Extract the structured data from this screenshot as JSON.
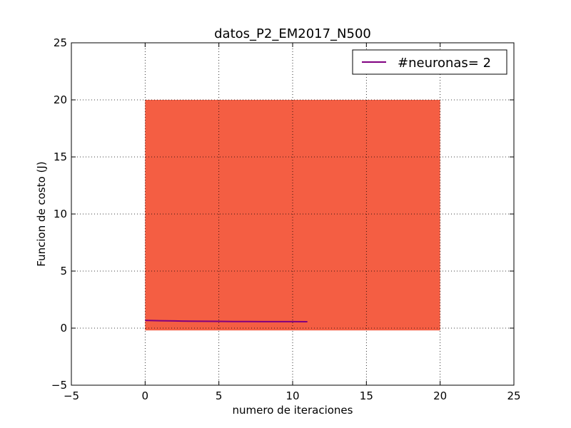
{
  "chart_data": {
    "type": "line",
    "title": "datos_P2_EM2017_N500",
    "xlabel": "numero de iteraciones",
    "ylabel": "Funcion de costo (J)",
    "xlim": [
      -5,
      25
    ],
    "ylim": [
      -5,
      25
    ],
    "xticks": [
      -5,
      0,
      5,
      10,
      15,
      20,
      25
    ],
    "yticks": [
      -5,
      0,
      5,
      10,
      15,
      20,
      25
    ],
    "xtick_labels": [
      "−5",
      "0",
      "5",
      "10",
      "15",
      "20",
      "25"
    ],
    "ytick_labels": [
      "−5",
      "0",
      "5",
      "10",
      "15",
      "20",
      "25"
    ],
    "grid": true,
    "legend_position": "top-right",
    "background_region": {
      "x": [
        0,
        20
      ],
      "y": [
        -0.2,
        20
      ],
      "color": "#f45e43"
    },
    "series": [
      {
        "name": "#neuronas= 2",
        "color": "#800080",
        "x": [
          0,
          1,
          2,
          3,
          4,
          5,
          6,
          7,
          8,
          9,
          10,
          11
        ],
        "y": [
          0.68,
          0.65,
          0.63,
          0.61,
          0.6,
          0.59,
          0.58,
          0.58,
          0.57,
          0.57,
          0.57,
          0.56
        ]
      }
    ]
  }
}
